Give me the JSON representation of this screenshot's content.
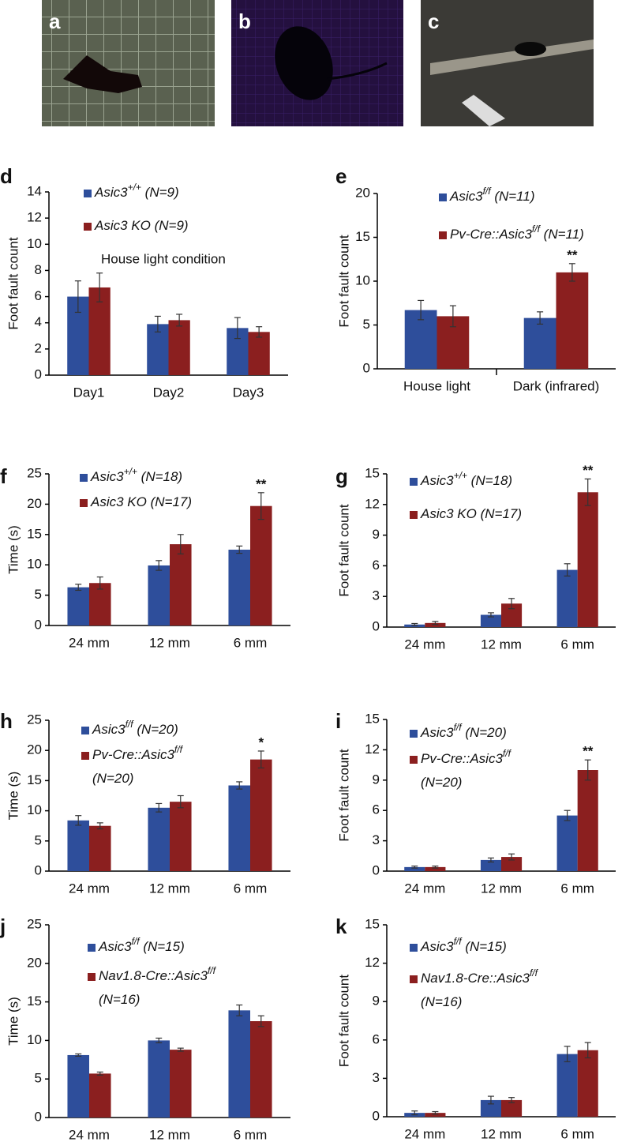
{
  "photo_labels": [
    "a",
    "b",
    "c"
  ],
  "chart_data": [
    {
      "type": "bar",
      "panel_label": "d",
      "ylabel": "Foot fault count",
      "annotations": [
        "House light condition"
      ],
      "categories": [
        "Day1",
        "Day2",
        "Day3"
      ],
      "ylim": [
        0,
        14
      ],
      "yticks": [
        0,
        2,
        4,
        6,
        8,
        10,
        12,
        14
      ],
      "series": [
        {
          "name": "Asic3+/+ (N=9)",
          "color": "#2e4e9b",
          "values": [
            6.0,
            3.9,
            3.6
          ],
          "errors": [
            1.2,
            0.6,
            0.8
          ]
        },
        {
          "name": "Asic3 KO (N=9)",
          "color": "#8b1f1f",
          "values": [
            6.7,
            4.2,
            3.3
          ],
          "errors": [
            1.1,
            0.45,
            0.4
          ]
        }
      ]
    },
    {
      "type": "bar",
      "panel_label": "e",
      "ylabel": "Foot fault count",
      "categories": [
        "House light",
        "Dark (infrared)"
      ],
      "ylim": [
        0,
        20
      ],
      "yticks": [
        0,
        5,
        10,
        15,
        20
      ],
      "series": [
        {
          "name": "Asic3f/f (N=11)",
          "color": "#2e4e9b",
          "values": [
            6.7,
            5.8
          ],
          "errors": [
            1.1,
            0.7
          ]
        },
        {
          "name": "Pv-Cre::Asic3f/f (N=11)",
          "color": "#8b1f1f",
          "values": [
            6.0,
            11.0
          ],
          "errors": [
            1.2,
            1.0
          ],
          "significance": [
            null,
            "**"
          ]
        }
      ]
    },
    {
      "type": "bar",
      "panel_label": "f",
      "ylabel": "Time (s)",
      "categories": [
        "24 mm",
        "12 mm",
        "6 mm"
      ],
      "ylim": [
        0,
        25
      ],
      "yticks": [
        0,
        5,
        10,
        15,
        20,
        25
      ],
      "series": [
        {
          "name": "Asic3+/+ (N=18)",
          "color": "#2e4e9b",
          "values": [
            6.3,
            9.9,
            12.5
          ],
          "errors": [
            0.5,
            0.8,
            0.6
          ]
        },
        {
          "name": "Asic3 KO (N=17)",
          "color": "#8b1f1f",
          "values": [
            7.0,
            13.4,
            19.7
          ],
          "errors": [
            1.0,
            1.6,
            2.2
          ],
          "significance": [
            null,
            null,
            "**"
          ]
        }
      ]
    },
    {
      "type": "bar",
      "panel_label": "g",
      "ylabel": "Foot fault count",
      "categories": [
        "24 mm",
        "12 mm",
        "6 mm"
      ],
      "ylim": [
        0,
        15
      ],
      "yticks": [
        0,
        3,
        6,
        9,
        12,
        15
      ],
      "series": [
        {
          "name": "Asic3+/+ (N=18)",
          "color": "#2e4e9b",
          "values": [
            0.25,
            1.2,
            5.6
          ],
          "errors": [
            0.1,
            0.2,
            0.6
          ]
        },
        {
          "name": "Asic3 KO (N=17)",
          "color": "#8b1f1f",
          "values": [
            0.4,
            2.3,
            13.2
          ],
          "errors": [
            0.15,
            0.5,
            1.3
          ],
          "significance": [
            null,
            null,
            "**"
          ]
        }
      ]
    },
    {
      "type": "bar",
      "panel_label": "h",
      "ylabel": "Time (s)",
      "categories": [
        "24 mm",
        "12 mm",
        "6 mm"
      ],
      "ylim": [
        0,
        25
      ],
      "yticks": [
        0,
        5,
        10,
        15,
        20,
        25
      ],
      "series": [
        {
          "name": "Asic3f/f (N=20)",
          "color": "#2e4e9b",
          "values": [
            8.4,
            10.5,
            14.2
          ],
          "errors": [
            0.8,
            0.7,
            0.6
          ]
        },
        {
          "name": "Pv-Cre::Asic3f/f (N=20)",
          "color": "#8b1f1f",
          "values": [
            7.5,
            11.5,
            18.5
          ],
          "errors": [
            0.5,
            1.0,
            1.4
          ],
          "significance": [
            null,
            null,
            "*"
          ]
        }
      ]
    },
    {
      "type": "bar",
      "panel_label": "i",
      "ylabel": "Foot fault count",
      "categories": [
        "24 mm",
        "12 mm",
        "6 mm"
      ],
      "ylim": [
        0,
        15
      ],
      "yticks": [
        0,
        3,
        6,
        9,
        12,
        15
      ],
      "series": [
        {
          "name": "Asic3f/f (N=20)",
          "color": "#2e4e9b",
          "values": [
            0.4,
            1.1,
            5.5
          ],
          "errors": [
            0.1,
            0.2,
            0.5
          ]
        },
        {
          "name": "Pv-Cre::Asic3f/f (N=20)",
          "color": "#8b1f1f",
          "values": [
            0.4,
            1.4,
            10.0
          ],
          "errors": [
            0.1,
            0.3,
            1.0
          ],
          "significance": [
            null,
            null,
            "**"
          ]
        }
      ]
    },
    {
      "type": "bar",
      "panel_label": "j",
      "ylabel": "Time (s)",
      "categories": [
        "24 mm",
        "12 mm",
        "6 mm"
      ],
      "ylim": [
        0,
        25
      ],
      "yticks": [
        0,
        5,
        10,
        15,
        20,
        25
      ],
      "series": [
        {
          "name": "Asic3f/f (N=15)",
          "color": "#2e4e9b",
          "values": [
            8.1,
            10.0,
            13.9
          ],
          "errors": [
            0.15,
            0.3,
            0.7
          ]
        },
        {
          "name": "Nav1.8-Cre::Asic3f/f (N=16)",
          "color": "#8b1f1f",
          "values": [
            5.7,
            8.8,
            12.5
          ],
          "errors": [
            0.2,
            0.2,
            0.7
          ]
        }
      ]
    },
    {
      "type": "bar",
      "panel_label": "k",
      "ylabel": "Foot fault count",
      "categories": [
        "24 mm",
        "12 mm",
        "6 mm"
      ],
      "ylim": [
        0,
        15
      ],
      "yticks": [
        0,
        3,
        6,
        9,
        12,
        15
      ],
      "series": [
        {
          "name": "Asic3f/f (N=15)",
          "color": "#2e4e9b",
          "values": [
            0.3,
            1.3,
            4.9
          ],
          "errors": [
            0.15,
            0.3,
            0.6
          ]
        },
        {
          "name": "Nav1.8-Cre::Asic3f/f (N=16)",
          "color": "#8b1f1f",
          "values": [
            0.3,
            1.3,
            5.2
          ],
          "errors": [
            0.1,
            0.2,
            0.6
          ]
        }
      ]
    }
  ]
}
